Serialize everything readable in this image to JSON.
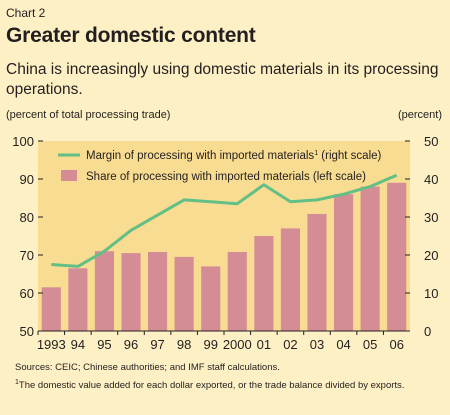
{
  "chart_number": "Chart 2",
  "chart_data": {
    "type": "bar",
    "title": "Greater domestic content",
    "subtitle": "China is increasingly using domestic materials in its processing operations.",
    "left_axis_label": "(percent of total processing trade)",
    "right_axis_label": "(percent)",
    "categories": [
      "1993",
      "94",
      "95",
      "96",
      "97",
      "98",
      "99",
      "2000",
      "01",
      "02",
      "03",
      "04",
      "05",
      "06"
    ],
    "series": [
      {
        "name": "Share of processing with imported materials (left scale)",
        "kind": "bar",
        "axis": "left",
        "color": "#d58d95",
        "values": [
          61.5,
          66.5,
          71,
          70.5,
          70.8,
          69.5,
          67,
          70.8,
          75,
          77,
          80.8,
          86,
          88,
          89
        ]
      },
      {
        "name": "Margin of processing with imported materials",
        "name_superscript": "1",
        "name_suffix": " (right scale)",
        "kind": "line",
        "axis": "right",
        "color": "#62bf85",
        "values": [
          17.5,
          17,
          21,
          26.5,
          30.5,
          34.5,
          34,
          33.5,
          38.5,
          34,
          34.5,
          36,
          38,
          41
        ]
      }
    ],
    "ylim_left": [
      50,
      100
    ],
    "yticks_left": [
      50,
      60,
      70,
      80,
      90,
      100
    ],
    "ylim_right": [
      0,
      50
    ],
    "yticks_right": [
      0,
      10,
      20,
      30,
      40,
      50
    ],
    "grid": false,
    "legend": "top"
  },
  "sources": "Sources: CEIC; Chinese authorities; and IMF staff calculations.",
  "footnote_marker": "1",
  "footnote_text": "The domestic value added for each dollar exported, or the trade balance divided by exports.",
  "colors": {
    "background": "#fdf0c4",
    "plot_area": "#f8dc91",
    "bars": "#d58d95",
    "line": "#62bf85"
  }
}
